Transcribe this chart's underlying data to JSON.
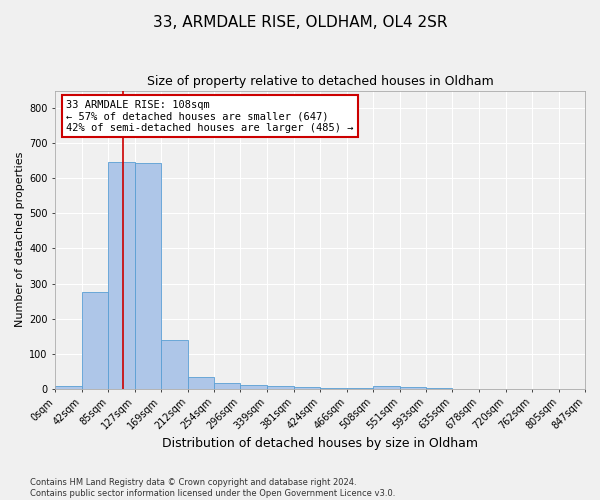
{
  "title": "33, ARMDALE RISE, OLDHAM, OL4 2SR",
  "subtitle": "Size of property relative to detached houses in Oldham",
  "xlabel": "Distribution of detached houses by size in Oldham",
  "ylabel": "Number of detached properties",
  "footer_line1": "Contains HM Land Registry data © Crown copyright and database right 2024.",
  "footer_line2": "Contains public sector information licensed under the Open Government Licence v3.0.",
  "bar_values": [
    8,
    275,
    647,
    645,
    140,
    35,
    18,
    12,
    8,
    5,
    3,
    2,
    8,
    5,
    2,
    1,
    1,
    0,
    0,
    0
  ],
  "bin_edges": [
    0,
    42,
    85,
    127,
    169,
    212,
    254,
    296,
    339,
    381,
    424,
    466,
    508,
    551,
    593,
    635,
    678,
    720,
    762,
    805,
    847
  ],
  "bin_labels": [
    "0sqm",
    "42sqm",
    "85sqm",
    "127sqm",
    "169sqm",
    "212sqm",
    "254sqm",
    "296sqm",
    "339sqm",
    "381sqm",
    "424sqm",
    "466sqm",
    "508sqm",
    "551sqm",
    "593sqm",
    "635sqm",
    "678sqm",
    "720sqm",
    "762sqm",
    "805sqm",
    "847sqm"
  ],
  "bar_color": "#aec6e8",
  "bar_edge_color": "#5a9fd4",
  "red_line_x": 108,
  "ylim": [
    0,
    850
  ],
  "yticks": [
    0,
    100,
    200,
    300,
    400,
    500,
    600,
    700,
    800
  ],
  "annotation_line1": "33 ARMDALE RISE: 108sqm",
  "annotation_line2": "← 57% of detached houses are smaller (647)",
  "annotation_line3": "42% of semi-detached houses are larger (485) →",
  "annotation_box_color": "#ffffff",
  "annotation_box_edge_color": "#cc0000",
  "background_color": "#f0f0f0",
  "grid_color": "#ffffff",
  "title_fontsize": 11,
  "subtitle_fontsize": 9,
  "ylabel_fontsize": 8,
  "xlabel_fontsize": 9,
  "annotation_fontsize": 7.5,
  "tick_fontsize": 7
}
